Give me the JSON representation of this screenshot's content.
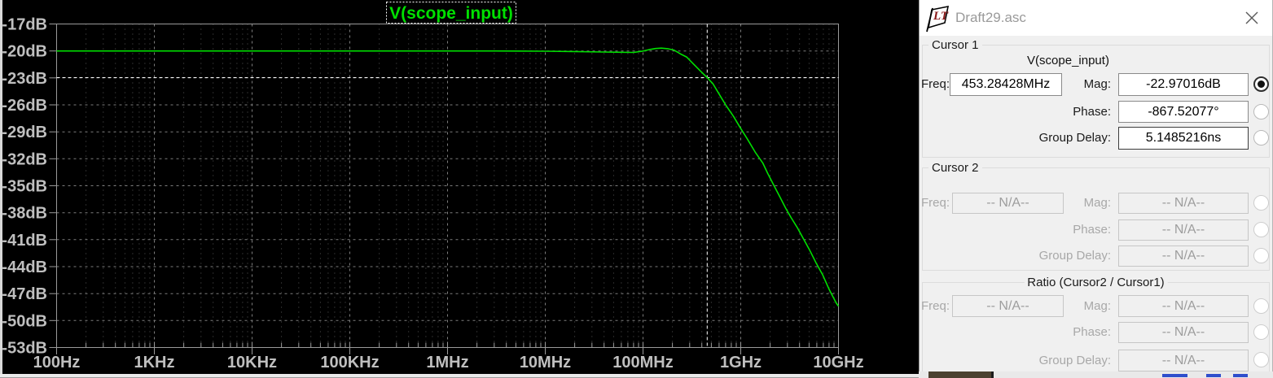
{
  "window": {
    "title": "Draft29.asc"
  },
  "chart_data": {
    "type": "line",
    "title": "V(scope_input)",
    "x_scale": "log",
    "x_range_hz": [
      100,
      10000000000
    ],
    "y_range_db": [
      -17,
      -53
    ],
    "grid": true,
    "x_ticks": [
      {
        "f": 100,
        "label": "100Hz"
      },
      {
        "f": 1000,
        "label": "1KHz"
      },
      {
        "f": 10000,
        "label": "10KHz"
      },
      {
        "f": 100000,
        "label": "100KHz"
      },
      {
        "f": 1000000,
        "label": "1MHz"
      },
      {
        "f": 10000000,
        "label": "10MHz"
      },
      {
        "f": 100000000,
        "label": "100MHz"
      },
      {
        "f": 1000000000,
        "label": "1GHz"
      },
      {
        "f": 10000000000,
        "label": "10GHz"
      }
    ],
    "y_ticks": [
      {
        "db": -17,
        "label": "-17dB"
      },
      {
        "db": -20,
        "label": "-20dB"
      },
      {
        "db": -23,
        "label": "-23dB"
      },
      {
        "db": -26,
        "label": "-26dB"
      },
      {
        "db": -29,
        "label": "-29dB"
      },
      {
        "db": -32,
        "label": "-32dB"
      },
      {
        "db": -35,
        "label": "-35dB"
      },
      {
        "db": -38,
        "label": "-38dB"
      },
      {
        "db": -41,
        "label": "-41dB"
      },
      {
        "db": -44,
        "label": "-44dB"
      },
      {
        "db": -47,
        "label": "-47dB"
      },
      {
        "db": -50,
        "label": "-50dB"
      },
      {
        "db": -53,
        "label": "-53dB"
      }
    ],
    "series": [
      {
        "name": "V(scope_input)",
        "color": "#00e000",
        "points": [
          [
            100,
            -20.0
          ],
          [
            1000,
            -20.0
          ],
          [
            10000,
            -20.0
          ],
          [
            100000,
            -20.0
          ],
          [
            1000000,
            -20.0
          ],
          [
            3000000,
            -20.0
          ],
          [
            10000000,
            -20.03
          ],
          [
            20000000,
            -20.07
          ],
          [
            40000000,
            -20.12
          ],
          [
            60000000,
            -20.15
          ],
          [
            80000000,
            -20.17
          ],
          [
            97000000,
            -20.04
          ],
          [
            115000000,
            -19.86
          ],
          [
            134000000,
            -19.73
          ],
          [
            154000000,
            -19.69
          ],
          [
            179000000,
            -19.75
          ],
          [
            207000000,
            -19.9
          ],
          [
            240000000,
            -20.31
          ],
          [
            279000000,
            -20.67
          ],
          [
            324000000,
            -21.4
          ],
          [
            377000000,
            -22.12
          ],
          [
            453284280,
            -22.97
          ],
          [
            520000000,
            -23.66
          ],
          [
            633000000,
            -25.21
          ],
          [
            710000000,
            -26.11
          ],
          [
            845000000,
            -27.29
          ],
          [
            990000000,
            -28.56
          ],
          [
            1160000000,
            -29.74
          ],
          [
            1410000000,
            -31.28
          ],
          [
            1680000000,
            -32.46
          ],
          [
            1890000000,
            -33.64
          ],
          [
            2170000000,
            -34.91
          ],
          [
            2520000000,
            -36.27
          ],
          [
            2870000000,
            -37.45
          ],
          [
            3270000000,
            -38.53
          ],
          [
            3820000000,
            -39.71
          ],
          [
            4370000000,
            -40.89
          ],
          [
            5020000000,
            -42.07
          ],
          [
            5860000000,
            -43.52
          ],
          [
            6860000000,
            -44.88
          ],
          [
            8000000000,
            -46.51
          ],
          [
            9500000000,
            -48.06
          ],
          [
            10000000000,
            -48.4
          ]
        ]
      }
    ],
    "cursor1": {
      "freq_hz": 453284280,
      "mag_db": -22.97016
    },
    "colors": {
      "background": "#000000",
      "trace": "#00e000",
      "title": "#00e000",
      "grid_major": "#7d7d7d",
      "grid_minor": "#565656",
      "axis": "#9a9a9a",
      "label": "#bfbfbf",
      "cursor": "#ffffff"
    }
  },
  "panel": {
    "cursor1": {
      "section_label": "Cursor 1",
      "trace_label": "V(scope_input)",
      "freq_label": "Freq:",
      "freq_value": "453.28428MHz",
      "mag_label": "Mag:",
      "mag_value": "-22.97016dB",
      "phase_label": "Phase:",
      "phase_value": "-867.52077°",
      "gd_label": "Group Delay:",
      "gd_value": "5.1485216ns"
    },
    "cursor2": {
      "section_label": "Cursor 2",
      "freq_label": "Freq:",
      "freq_value": "-- N/A--",
      "mag_label": "Mag:",
      "mag_value": "-- N/A--",
      "phase_label": "Phase:",
      "phase_value": "-- N/A--",
      "gd_label": "Group Delay:",
      "gd_value": "-- N/A--"
    },
    "ratio": {
      "section_label": "Ratio (Cursor2 / Cursor1)",
      "freq_label": "Freq:",
      "freq_value": "-- N/A--",
      "mag_label": "Mag:",
      "mag_value": "-- N/A--",
      "phase_label": "Phase:",
      "phase_value": "-- N/A--",
      "gd_label": "Group Delay:",
      "gd_value": "-- N/A--"
    },
    "radios": {
      "cursor1_mag": "on",
      "cursor1_phase": "off",
      "cursor1_gd": "off",
      "cursor2_mag": "off",
      "cursor2_phase": "off",
      "cursor2_gd": "off",
      "ratio_mag": "off",
      "ratio_phase": "off",
      "ratio_gd": "off"
    }
  }
}
